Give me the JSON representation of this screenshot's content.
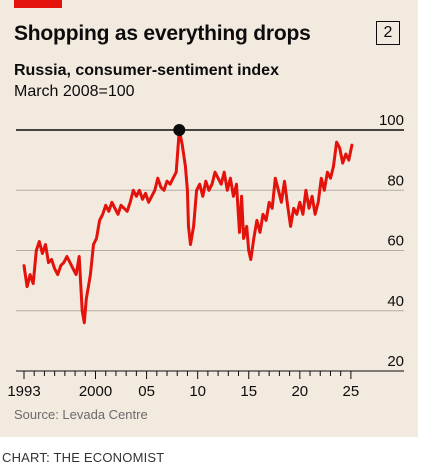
{
  "header": {
    "title": "Shopping as everything drops",
    "badge": "2",
    "subtitle": "Russia, consumer-sentiment index",
    "subsubtitle": "March 2008=100"
  },
  "footer": {
    "source": "Source: Levada Centre",
    "credit": "CHART: THE ECONOMIST"
  },
  "colors": {
    "line": "#e3120b",
    "accent": "#e3120b",
    "background": "#f2e9df",
    "text": "#0c0c0c",
    "grid": "#b5aca3"
  },
  "chart_data": {
    "type": "line",
    "title": "Shopping as everything drops",
    "subtitle": "Russia, consumer-sentiment index",
    "ylabel": "March 2008=100",
    "xlim": [
      1993,
      2025.5
    ],
    "ylim": [
      20,
      100
    ],
    "yticks": [
      20,
      40,
      60,
      80,
      100
    ],
    "ytick_labels": [
      "20",
      "40",
      "60",
      "80",
      "100"
    ],
    "xticks": [
      1993,
      2000,
      2005,
      2010,
      2015,
      2020,
      2025
    ],
    "xtick_labels": [
      "1993",
      "2000",
      "05",
      "10",
      "15",
      "20",
      "25"
    ],
    "grid": "horizontal",
    "highlight": {
      "x": 2008.2,
      "y": 100
    },
    "series": [
      {
        "values": [
          [
            1993.0,
            55
          ],
          [
            1993.3,
            48
          ],
          [
            1993.6,
            52
          ],
          [
            1993.9,
            49
          ],
          [
            1994.2,
            60
          ],
          [
            1994.5,
            63
          ],
          [
            1994.8,
            59
          ],
          [
            1995.1,
            62
          ],
          [
            1995.4,
            56
          ],
          [
            1995.7,
            57
          ],
          [
            1996.0,
            54
          ],
          [
            1996.3,
            52
          ],
          [
            1996.6,
            55
          ],
          [
            1996.9,
            56
          ],
          [
            1997.2,
            58
          ],
          [
            1997.5,
            56
          ],
          [
            1997.8,
            54
          ],
          [
            1998.1,
            52
          ],
          [
            1998.4,
            58
          ],
          [
            1998.7,
            40
          ],
          [
            1998.9,
            36
          ],
          [
            1999.1,
            44
          ],
          [
            1999.3,
            48
          ],
          [
            1999.5,
            52
          ],
          [
            1999.8,
            62
          ],
          [
            2000.1,
            64
          ],
          [
            2000.4,
            70
          ],
          [
            2000.7,
            72
          ],
          [
            2001.0,
            75
          ],
          [
            2001.3,
            73
          ],
          [
            2001.6,
            76
          ],
          [
            2001.9,
            74
          ],
          [
            2002.2,
            72
          ],
          [
            2002.5,
            75
          ],
          [
            2002.8,
            74
          ],
          [
            2003.1,
            73
          ],
          [
            2003.4,
            76
          ],
          [
            2003.7,
            80
          ],
          [
            2004.0,
            78
          ],
          [
            2004.3,
            80
          ],
          [
            2004.6,
            77
          ],
          [
            2004.9,
            79
          ],
          [
            2005.2,
            76
          ],
          [
            2005.5,
            78
          ],
          [
            2005.8,
            80
          ],
          [
            2006.1,
            84
          ],
          [
            2006.4,
            81
          ],
          [
            2006.7,
            80
          ],
          [
            2007.0,
            83
          ],
          [
            2007.3,
            82
          ],
          [
            2007.6,
            84
          ],
          [
            2007.9,
            86
          ],
          [
            2008.2,
            100
          ],
          [
            2008.5,
            95
          ],
          [
            2008.8,
            88
          ],
          [
            2009.0,
            80
          ],
          [
            2009.1,
            68
          ],
          [
            2009.3,
            62
          ],
          [
            2009.6,
            68
          ],
          [
            2009.9,
            80
          ],
          [
            2010.2,
            82
          ],
          [
            2010.5,
            78
          ],
          [
            2010.8,
            83
          ],
          [
            2011.1,
            80
          ],
          [
            2011.4,
            82
          ],
          [
            2011.7,
            86
          ],
          [
            2012.0,
            84
          ],
          [
            2012.3,
            82
          ],
          [
            2012.6,
            86
          ],
          [
            2012.9,
            80
          ],
          [
            2013.2,
            84
          ],
          [
            2013.5,
            78
          ],
          [
            2013.8,
            82
          ],
          [
            2014.1,
            66
          ],
          [
            2014.3,
            78
          ],
          [
            2014.5,
            64
          ],
          [
            2014.8,
            68
          ],
          [
            2015.0,
            60
          ],
          [
            2015.2,
            57
          ],
          [
            2015.5,
            64
          ],
          [
            2015.8,
            70
          ],
          [
            2016.1,
            66
          ],
          [
            2016.4,
            72
          ],
          [
            2016.7,
            70
          ],
          [
            2017.0,
            76
          ],
          [
            2017.3,
            74
          ],
          [
            2017.6,
            84
          ],
          [
            2017.9,
            80
          ],
          [
            2018.2,
            76
          ],
          [
            2018.5,
            83
          ],
          [
            2018.8,
            75
          ],
          [
            2019.1,
            68
          ],
          [
            2019.4,
            74
          ],
          [
            2019.7,
            72
          ],
          [
            2020.0,
            76
          ],
          [
            2020.3,
            72
          ],
          [
            2020.6,
            80
          ],
          [
            2020.9,
            74
          ],
          [
            2021.2,
            78
          ],
          [
            2021.5,
            72
          ],
          [
            2021.8,
            76
          ],
          [
            2022.1,
            84
          ],
          [
            2022.4,
            80
          ],
          [
            2022.7,
            86
          ],
          [
            2023.0,
            84
          ],
          [
            2023.3,
            88
          ],
          [
            2023.6,
            96
          ],
          [
            2023.9,
            94
          ],
          [
            2024.2,
            89
          ],
          [
            2024.5,
            92
          ],
          [
            2024.8,
            90
          ],
          [
            2025.1,
            95
          ]
        ]
      }
    ]
  }
}
